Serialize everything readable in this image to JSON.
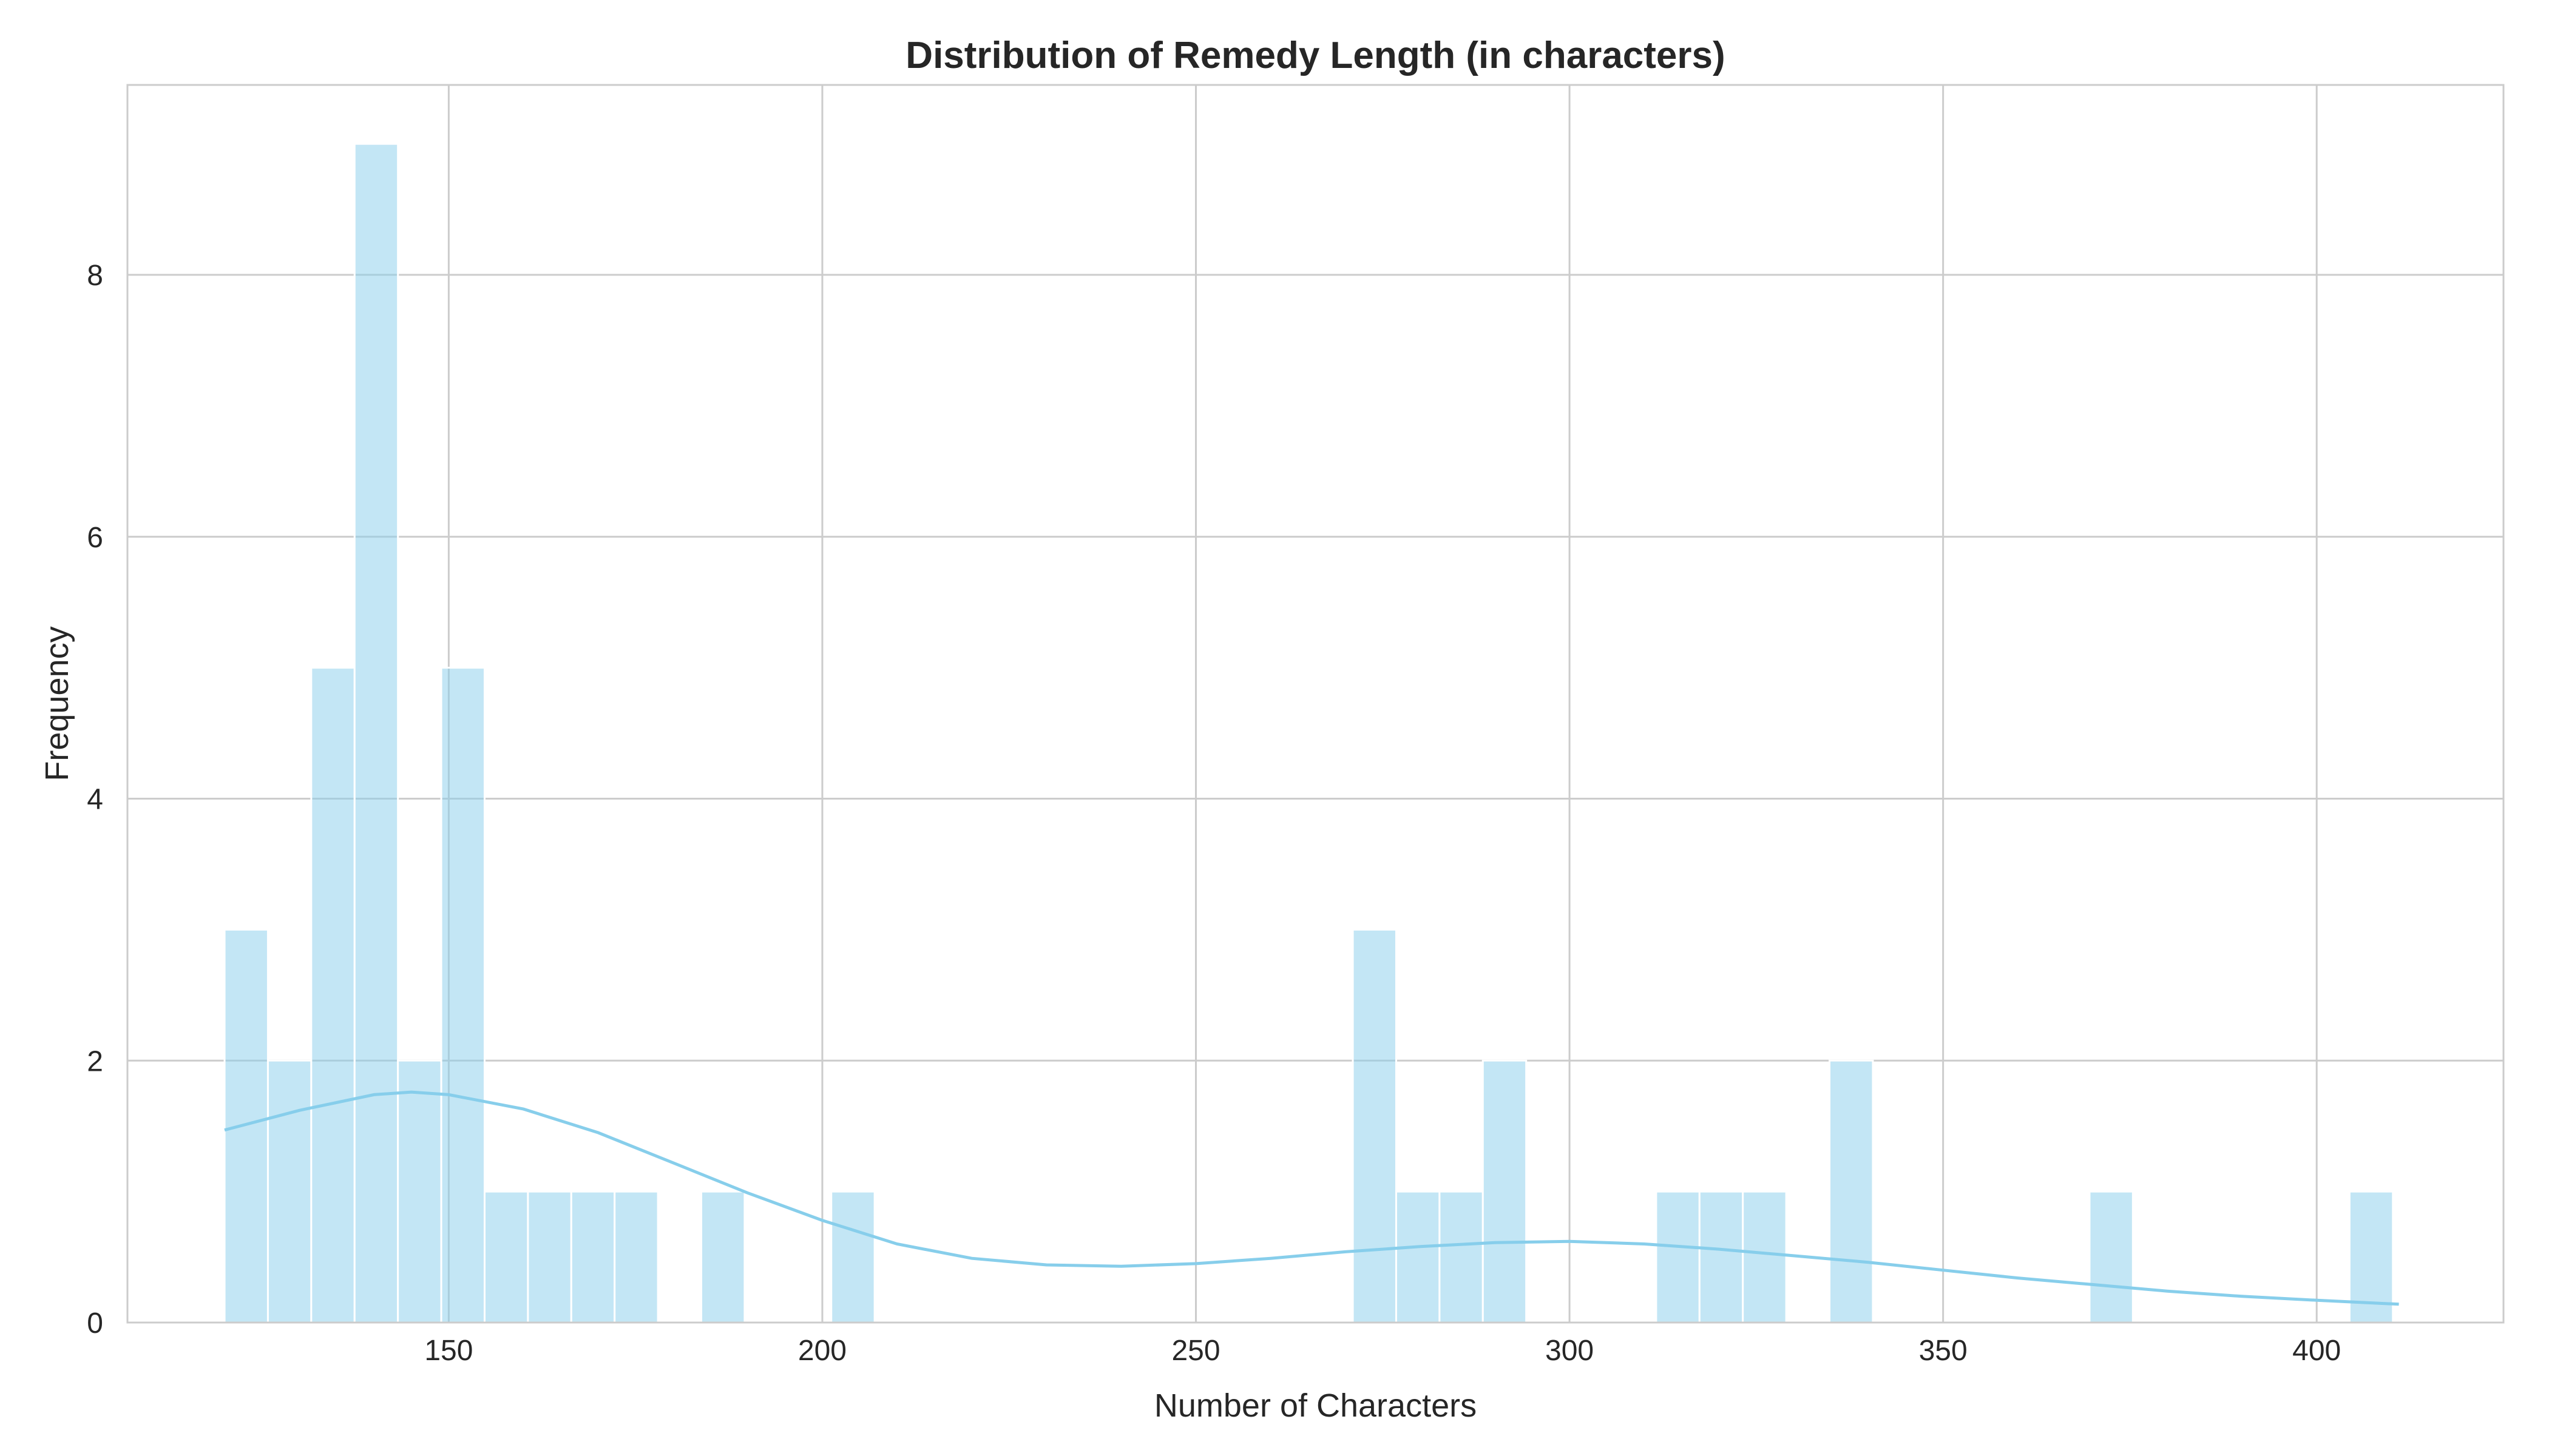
{
  "chart_data": {
    "type": "bar",
    "title": "Distribution of Remedy Length (in characters)",
    "xlabel": "Number of Characters",
    "ylabel": "Frequency",
    "xlim": [
      107,
      425
    ],
    "ylim": [
      0,
      9.45
    ],
    "xticks": [
      150,
      200,
      250,
      300,
      350,
      400
    ],
    "yticks": [
      0,
      2,
      4,
      6,
      8
    ],
    "grid": true,
    "bins": [
      {
        "x0": 120.0,
        "x1": 125.8,
        "count": 3
      },
      {
        "x0": 125.8,
        "x1": 131.6,
        "count": 2
      },
      {
        "x0": 131.6,
        "x1": 137.4,
        "count": 5
      },
      {
        "x0": 137.4,
        "x1": 143.2,
        "count": 9
      },
      {
        "x0": 143.2,
        "x1": 149.0,
        "count": 2
      },
      {
        "x0": 149.0,
        "x1": 154.8,
        "count": 5
      },
      {
        "x0": 154.8,
        "x1": 160.6,
        "count": 1
      },
      {
        "x0": 160.6,
        "x1": 166.4,
        "count": 1
      },
      {
        "x0": 166.4,
        "x1": 172.2,
        "count": 1
      },
      {
        "x0": 172.2,
        "x1": 178.0,
        "count": 1
      },
      {
        "x0": 183.8,
        "x1": 189.6,
        "count": 1
      },
      {
        "x0": 201.2,
        "x1": 207.0,
        "count": 1
      },
      {
        "x0": 271.0,
        "x1": 276.8,
        "count": 3
      },
      {
        "x0": 276.8,
        "x1": 282.6,
        "count": 1
      },
      {
        "x0": 282.6,
        "x1": 288.4,
        "count": 1
      },
      {
        "x0": 288.4,
        "x1": 294.2,
        "count": 2
      },
      {
        "x0": 311.6,
        "x1": 317.4,
        "count": 1
      },
      {
        "x0": 317.4,
        "x1": 323.2,
        "count": 1
      },
      {
        "x0": 323.2,
        "x1": 329.0,
        "count": 1
      },
      {
        "x0": 334.8,
        "x1": 340.6,
        "count": 2
      },
      {
        "x0": 369.6,
        "x1": 375.4,
        "count": 1
      },
      {
        "x0": 404.4,
        "x1": 410.2,
        "count": 1
      }
    ],
    "kde": {
      "x": [
        120,
        130,
        140,
        145,
        150,
        160,
        170,
        180,
        190,
        200,
        210,
        220,
        230,
        240,
        250,
        260,
        270,
        280,
        290,
        300,
        310,
        320,
        330,
        340,
        350,
        360,
        370,
        380,
        390,
        400,
        411
      ],
      "y": [
        1.47,
        1.62,
        1.74,
        1.76,
        1.74,
        1.63,
        1.45,
        1.22,
        0.99,
        0.78,
        0.6,
        0.49,
        0.44,
        0.43,
        0.45,
        0.49,
        0.54,
        0.58,
        0.61,
        0.62,
        0.6,
        0.56,
        0.51,
        0.46,
        0.4,
        0.34,
        0.29,
        0.24,
        0.2,
        0.17,
        0.14
      ]
    }
  }
}
